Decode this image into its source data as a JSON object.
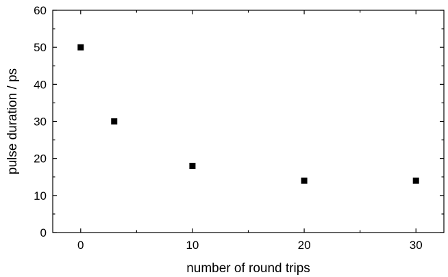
{
  "chart_data": {
    "type": "scatter",
    "xlabel": "number of round trips",
    "ylabel": "pulse duration / ps",
    "xlim": [
      -2.5,
      32.5
    ],
    "ylim": [
      0,
      60
    ],
    "xticks": [
      0,
      10,
      20,
      30
    ],
    "yticks": [
      0,
      10,
      20,
      30,
      40,
      50,
      60
    ],
    "x_minor_step": 5,
    "y_minor_step": 5,
    "grid": false,
    "marker": "square",
    "marker_color": "#000000",
    "series": [
      {
        "points": [
          {
            "x": 0,
            "y": 50
          },
          {
            "x": 3,
            "y": 30
          },
          {
            "x": 10,
            "y": 18
          },
          {
            "x": 20,
            "y": 14
          },
          {
            "x": 30,
            "y": 14
          }
        ]
      }
    ]
  }
}
